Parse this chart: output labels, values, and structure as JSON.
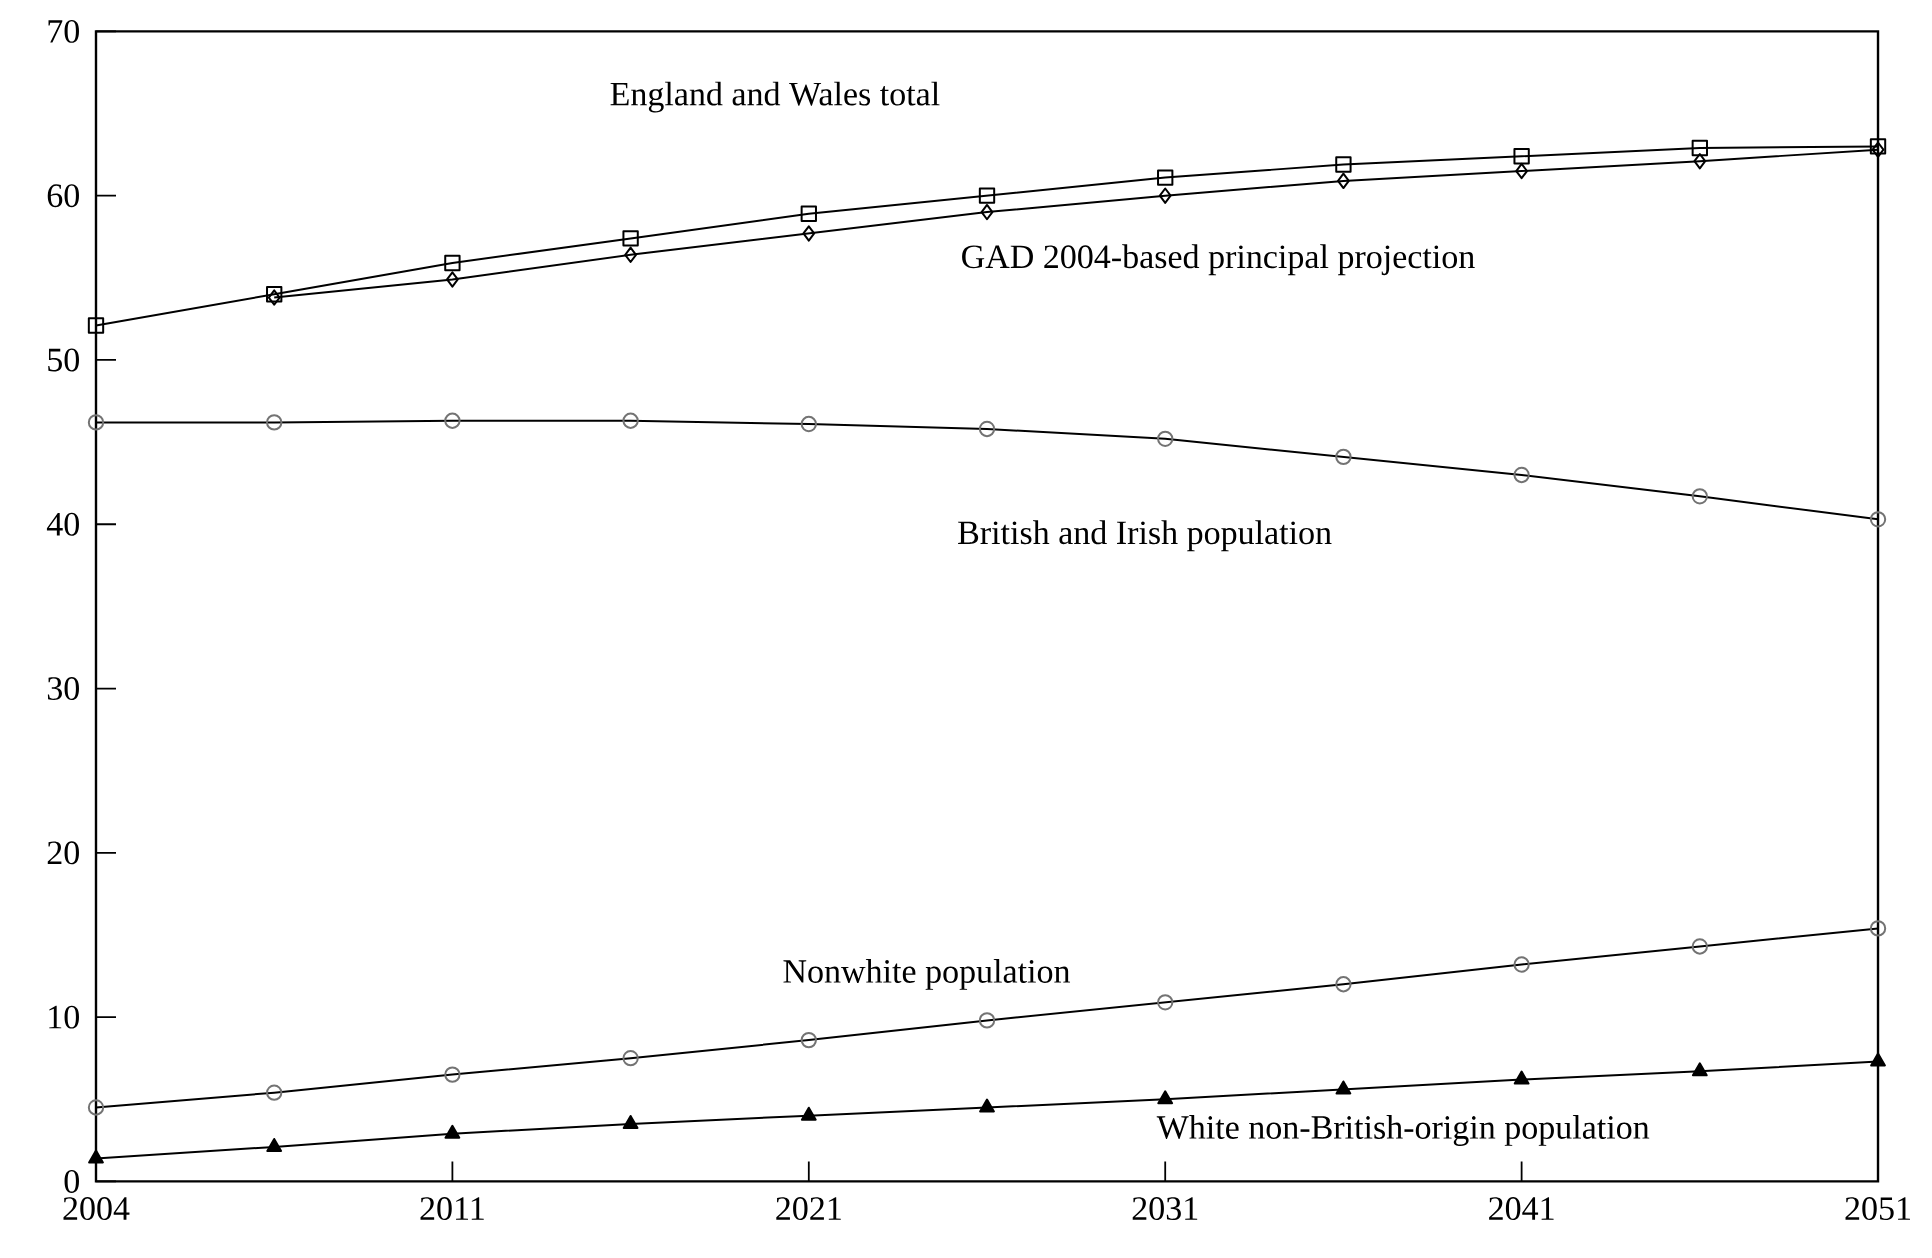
{
  "chart_data": {
    "type": "line",
    "categories": [
      "2004",
      null,
      "2011",
      null,
      "2021",
      null,
      "2031",
      null,
      "2041",
      null,
      "2051"
    ],
    "ylim": [
      0,
      70
    ],
    "yticks": [
      0,
      10,
      20,
      30,
      40,
      50,
      60,
      70
    ],
    "grid": false,
    "legend": false,
    "line_style": "solid",
    "series": [
      {
        "name": "England and Wales total",
        "color": "#000000",
        "marker": "square",
        "values": [
          52.1,
          54.0,
          55.9,
          57.4,
          58.9,
          60.0,
          61.1,
          61.9,
          62.4,
          62.9,
          63.0
        ]
      },
      {
        "name": "GAD 2004-based principal projection",
        "color": "#000000",
        "marker": "diamond",
        "values": [
          null,
          53.8,
          54.9,
          56.4,
          57.7,
          59.0,
          60.0,
          60.9,
          61.5,
          62.1,
          62.8
        ]
      },
      {
        "name": "British and Irish population",
        "color": "#000000",
        "marker": "circle",
        "values": [
          46.2,
          46.2,
          46.3,
          46.3,
          46.1,
          45.8,
          45.2,
          44.1,
          43.0,
          41.7,
          40.3
        ]
      },
      {
        "name": "Nonwhite population",
        "color": "#000000",
        "marker": "circle",
        "values": [
          4.5,
          5.4,
          6.5,
          7.5,
          8.6,
          9.8,
          10.9,
          12.0,
          13.2,
          14.3,
          15.4
        ]
      },
      {
        "name": "White non-British-origin population",
        "color": "#000000",
        "marker": "triangle",
        "values": [
          1.4,
          2.1,
          2.9,
          3.5,
          4.0,
          4.5,
          5.0,
          5.6,
          6.2,
          6.7,
          7.3
        ]
      }
    ]
  }
}
